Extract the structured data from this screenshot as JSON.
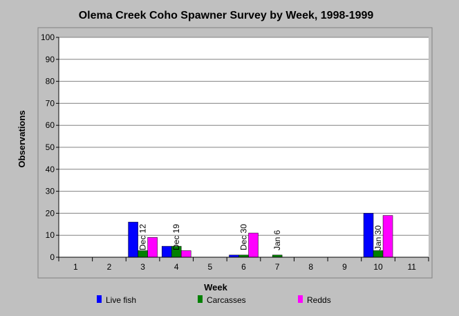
{
  "chart_data": {
    "type": "bar",
    "title": "Olema Creek Coho Spawner Survey by Week, 1998-1999",
    "xlabel": "Week",
    "ylabel": "Observations",
    "ylim": [
      0,
      100
    ],
    "yticks": [
      0,
      10,
      20,
      30,
      40,
      50,
      60,
      70,
      80,
      90,
      100
    ],
    "categories": [
      "1",
      "2",
      "3",
      "4",
      "5",
      "6",
      "7",
      "8",
      "9",
      "10",
      "11"
    ],
    "series": [
      {
        "name": "Live fish",
        "color": "#0000ff",
        "values": [
          0,
          0,
          16,
          5,
          0,
          1,
          0,
          0,
          0,
          20,
          0
        ]
      },
      {
        "name": "Carcasses",
        "color": "#008000",
        "values": [
          0,
          0,
          3,
          5,
          0,
          1,
          1,
          0,
          0,
          3,
          0
        ]
      },
      {
        "name": "Redds",
        "color": "#ff00ff",
        "values": [
          0,
          0,
          9,
          3,
          0,
          11,
          0,
          0,
          0,
          19,
          0
        ]
      }
    ],
    "annotations": [
      "",
      "",
      "Dec 12",
      "Dec 19",
      "",
      "Dec 30",
      "Jan 6",
      "",
      "",
      "Jan 30",
      ""
    ],
    "grid": true,
    "legend": "bottom"
  }
}
